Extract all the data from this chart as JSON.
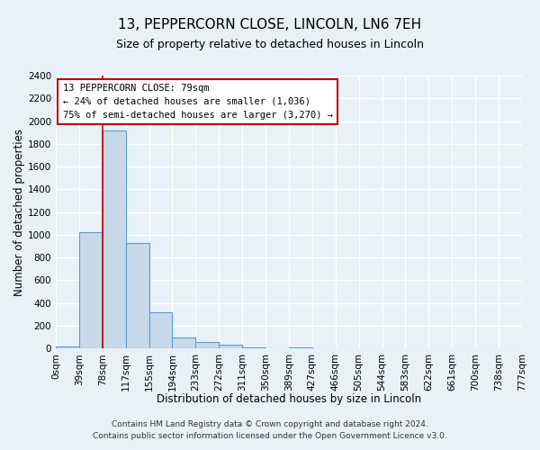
{
  "title": "13, PEPPERCORN CLOSE, LINCOLN, LN6 7EH",
  "subtitle": "Size of property relative to detached houses in Lincoln",
  "xlabel": "Distribution of detached houses by size in Lincoln",
  "ylabel": "Number of detached properties",
  "bin_labels": [
    "0sqm",
    "39sqm",
    "78sqm",
    "117sqm",
    "155sqm",
    "194sqm",
    "233sqm",
    "272sqm",
    "311sqm",
    "350sqm",
    "389sqm",
    "427sqm",
    "466sqm",
    "505sqm",
    "544sqm",
    "583sqm",
    "622sqm",
    "661sqm",
    "700sqm",
    "738sqm",
    "777sqm"
  ],
  "bar_heights": [
    20,
    1025,
    1920,
    930,
    320,
    100,
    55,
    30,
    10,
    0,
    10,
    0,
    0,
    0,
    0,
    0,
    0,
    0,
    0,
    0
  ],
  "bar_color": "#c8daea",
  "bar_edge_color": "#5b9bd5",
  "vline_bin": 2,
  "vline_color": "#c00000",
  "ylim": [
    0,
    2400
  ],
  "yticks": [
    0,
    200,
    400,
    600,
    800,
    1000,
    1200,
    1400,
    1600,
    1800,
    2000,
    2200,
    2400
  ],
  "annotation_title": "13 PEPPERCORN CLOSE: 79sqm",
  "annotation_line1": "← 24% of detached houses are smaller (1,036)",
  "annotation_line2": "75% of semi-detached houses are larger (3,270) →",
  "footer1": "Contains HM Land Registry data © Crown copyright and database right 2024.",
  "footer2": "Contains public sector information licensed under the Open Government Licence v3.0.",
  "bg_color": "#e8f0f8",
  "grid_color": "#ffffff",
  "title_fontsize": 11,
  "subtitle_fontsize": 9,
  "axis_label_fontsize": 8.5,
  "tick_fontsize": 7.5,
  "footer_fontsize": 6.5,
  "ann_fontsize": 7.5
}
